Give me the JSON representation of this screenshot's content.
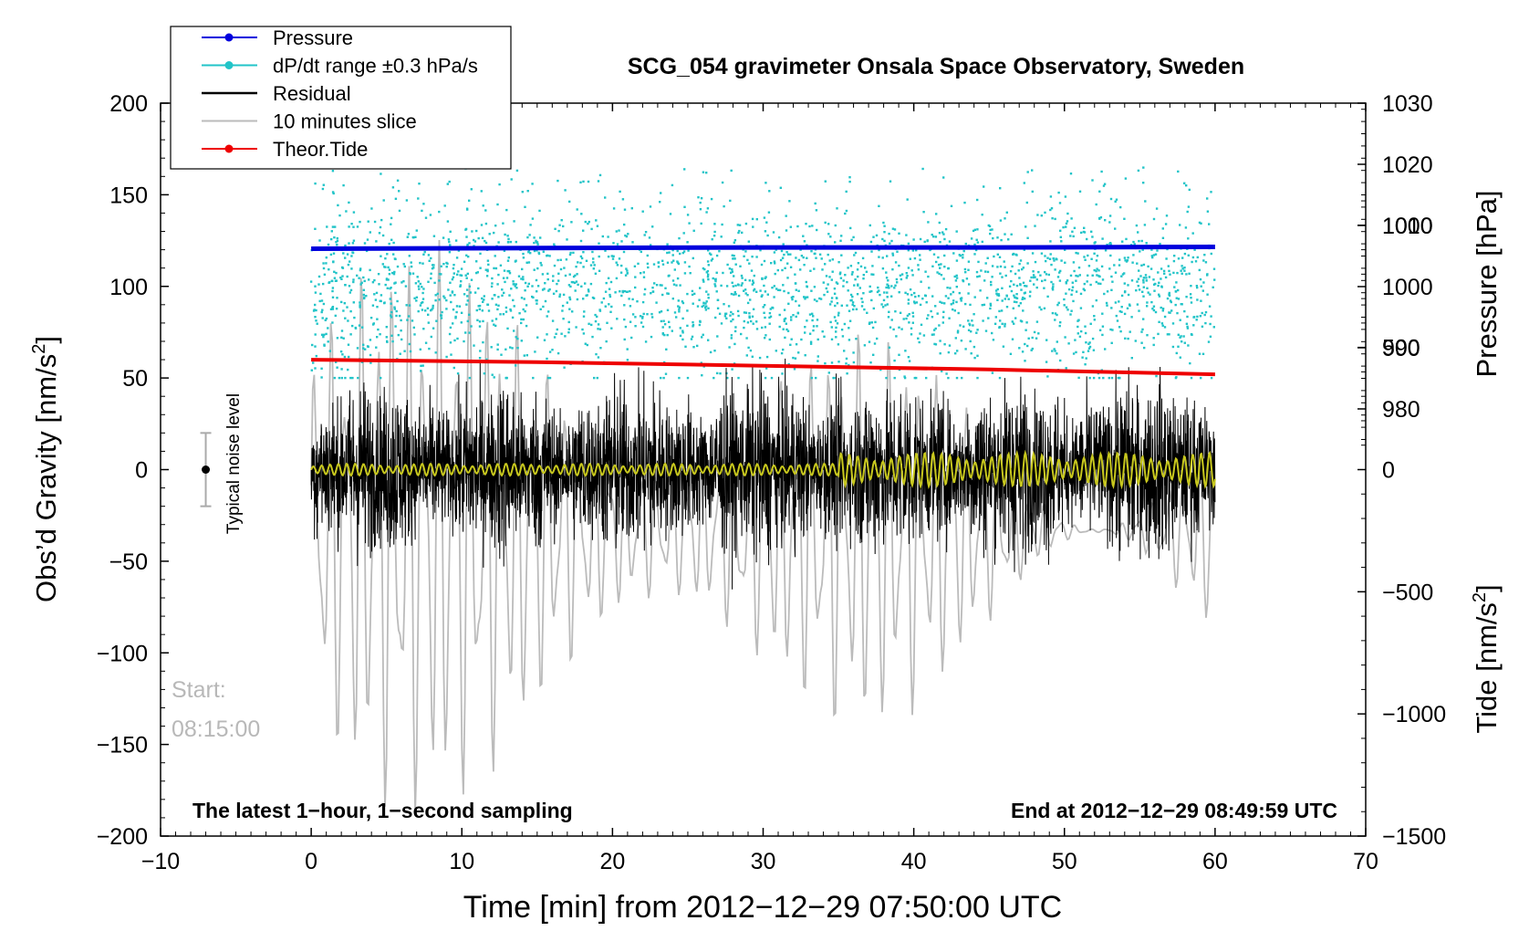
{
  "chart_data": {
    "type": "line",
    "title": "SCG_054 gravimeter Onsala Space Observatory, Sweden",
    "xlabel": "Time [min] from 2012−12−29 07:50:00 UTC",
    "ylabel_left": "Obs’d Gravity [nm/s",
    "ylabel_left_sup": "2",
    "ylabel_left_close": "]",
    "ylabel_right_top": "Pressure [hPa]",
    "ylabel_right_bottom": "Tide [nm/s",
    "ylabel_right_bottom_sup": "2",
    "ylabel_right_bottom_close": "]",
    "xlim": [
      -10,
      70
    ],
    "ylim_left": [
      -200,
      200
    ],
    "ylim_pressure": [
      970,
      1030
    ],
    "ylim_tide": [
      -1500,
      1500
    ],
    "x_ticks": [
      "−10",
      "0",
      "10",
      "20",
      "30",
      "40",
      "50",
      "60",
      "70"
    ],
    "y_left_ticks": [
      "200",
      "150",
      "100",
      "50",
      "0",
      "−50",
      "−100",
      "−150",
      "−200"
    ],
    "y_pressure_ticks": [
      "1030",
      "1020",
      "1010",
      "1000",
      "990",
      "980"
    ],
    "y_tide_ticks": [
      "1000",
      "500",
      "0",
      "−500",
      "−1000",
      "−1500"
    ],
    "legend": {
      "position": "top-left",
      "entries": [
        {
          "label": "Pressure",
          "color": "#0000dd",
          "marker": true
        },
        {
          "label": "dP/dt range ±0.3 hPa/s",
          "color": "#22c4c8",
          "marker": true
        },
        {
          "label": "Residual",
          "color": "#000000",
          "marker": false
        },
        {
          "label": "10 minutes slice",
          "color": "#bbbbbb",
          "marker": false
        },
        {
          "label": "Theor.Tide",
          "color": "#ee0000",
          "marker": true
        }
      ]
    },
    "series": [
      {
        "name": "Pressure",
        "axis": "pressure",
        "x_range": [
          0,
          60
        ],
        "values_hPa": [
          1006.2,
          1006.3,
          1006.4,
          1006.4,
          1006.5
        ]
      },
      {
        "name": "dP/dt range ±0.3 hPa/s",
        "axis": "left",
        "x_range": [
          0,
          60
        ],
        "center_nm_s2": 100,
        "spread_nm_s2": 60
      },
      {
        "name": "Residual",
        "axis": "left",
        "x_range": [
          0,
          60
        ],
        "amplitude_nm_s2": 65,
        "mean_nm_s2": 0
      },
      {
        "name": "Low-pass residual",
        "axis": "left",
        "x_range": [
          0,
          60
        ],
        "amplitude_nm_s2": 12,
        "color": "#c8c81e"
      },
      {
        "name": "10 minutes slice",
        "axis": "tide",
        "x_range": [
          0,
          60
        ],
        "amplitude_nm_s2": 1000,
        "center_nm_s2": -250
      },
      {
        "name": "Theor.Tide",
        "axis": "tide",
        "x_range": [
          0,
          60
        ],
        "values_nm_s2": [
          450,
          440,
          425,
          410,
          390
        ]
      }
    ],
    "noise_level": {
      "label": "Typical noise level",
      "x": -7,
      "center": 0,
      "range": [
        -20,
        20
      ]
    },
    "annotations": {
      "start_label": "Start:",
      "start_time": "08:15:00",
      "bottom_left": "The latest 1−hour, 1−second sampling",
      "bottom_right": "End at 2012−12−29 08:49:59 UTC"
    }
  }
}
